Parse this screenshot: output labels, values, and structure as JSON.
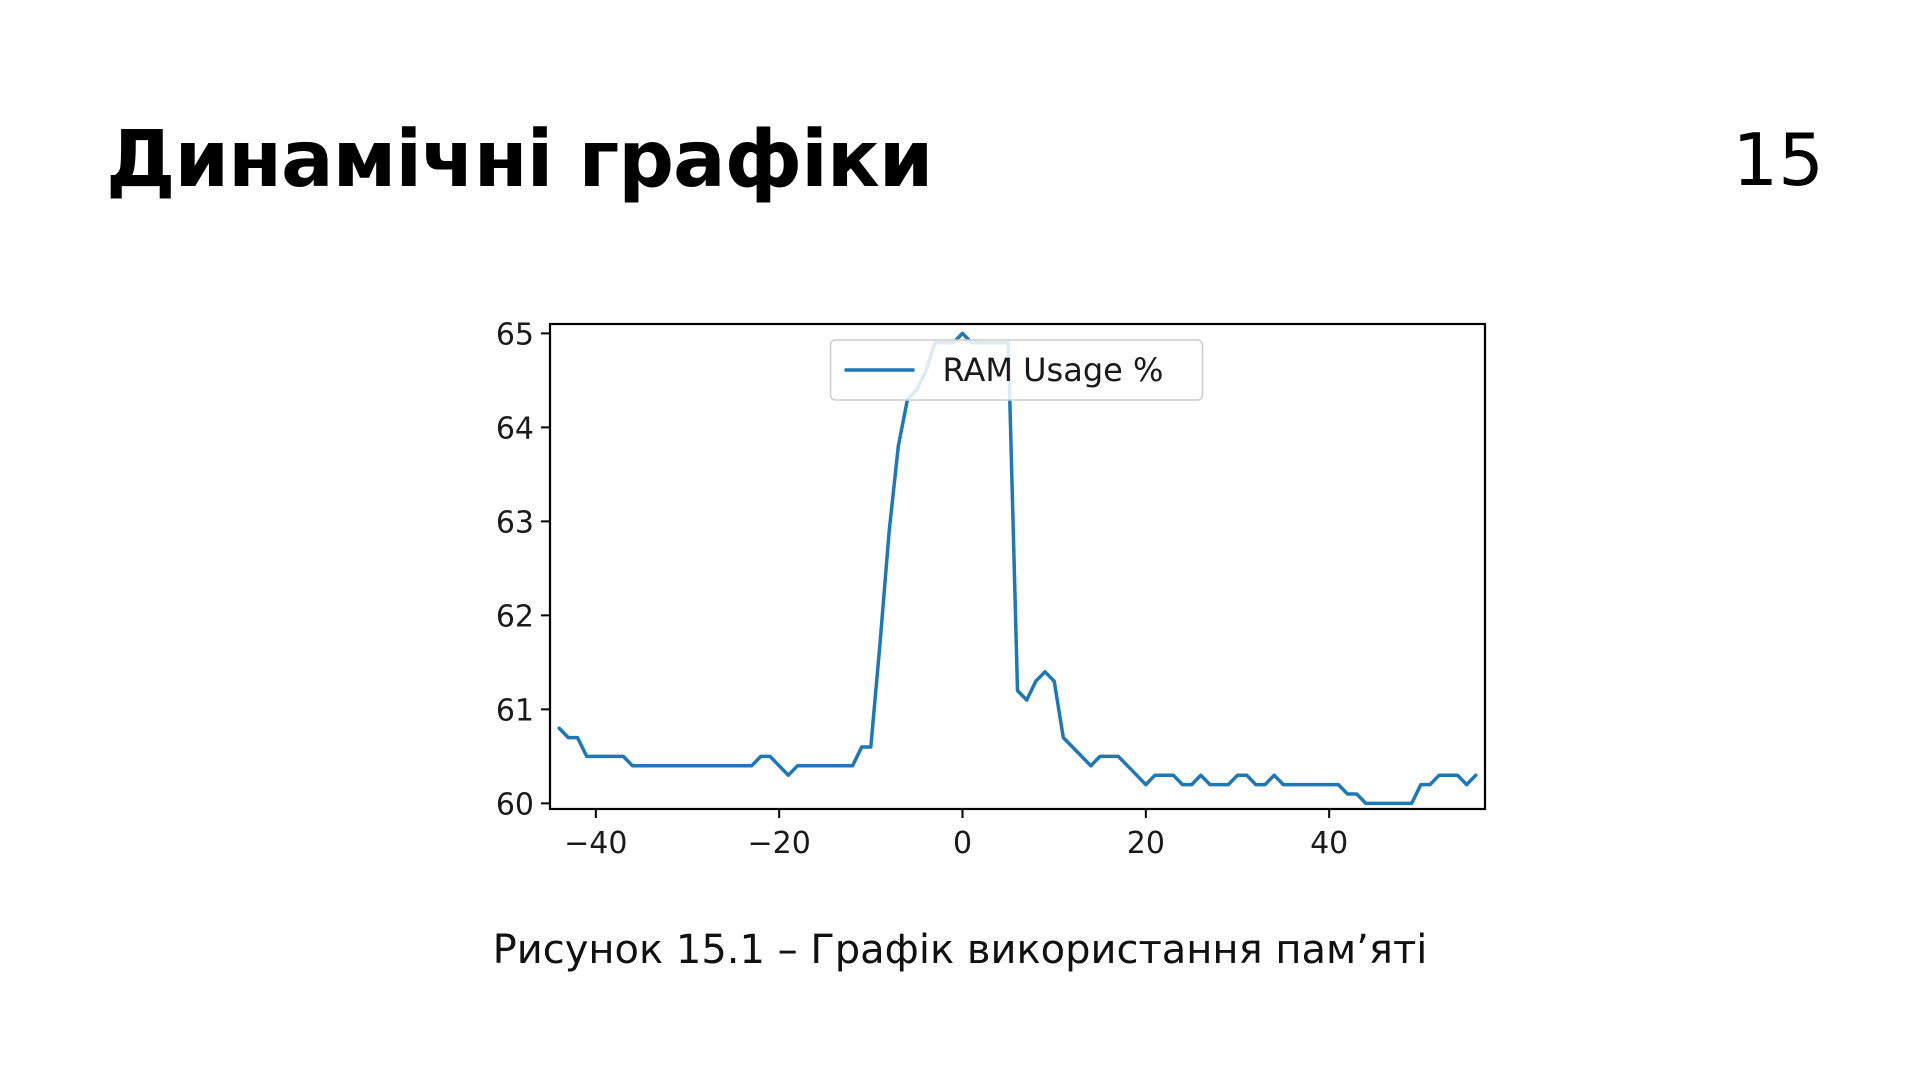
{
  "slide": {
    "title": "Динамічні графіки",
    "number": "15",
    "caption": "Рисунок 15.1 – Графік використання пам’яті"
  },
  "colors": {
    "line": "#1f77b4",
    "axis": "#000000",
    "background": "#ffffff"
  },
  "chart_data": {
    "type": "line",
    "title": "",
    "xlabel": "",
    "ylabel": "",
    "xlim": [
      -45,
      57
    ],
    "ylim": [
      60,
      65
    ],
    "xticks": [
      {
        "value": -40,
        "label": "−40"
      },
      {
        "value": -20,
        "label": "−20"
      },
      {
        "value": 0,
        "label": "0"
      },
      {
        "value": 20,
        "label": "20"
      },
      {
        "value": 40,
        "label": "40"
      }
    ],
    "yticks": [
      {
        "value": 60,
        "label": "60"
      },
      {
        "value": 61,
        "label": "61"
      },
      {
        "value": 62,
        "label": "62"
      },
      {
        "value": 63,
        "label": "63"
      },
      {
        "value": 64,
        "label": "64"
      },
      {
        "value": 65,
        "label": "65"
      }
    ],
    "grid": false,
    "legend": {
      "position": "upper center",
      "entries": [
        "RAM Usage %"
      ]
    },
    "series": [
      {
        "name": "RAM Usage %",
        "x": [
          -44,
          -43,
          -42,
          -41,
          -40,
          -39,
          -38,
          -37,
          -36,
          -35,
          -34,
          -33,
          -32,
          -31,
          -30,
          -29,
          -28,
          -27,
          -26,
          -25,
          -24,
          -23,
          -22,
          -21,
          -20,
          -19,
          -18,
          -17,
          -16,
          -15,
          -14,
          -13,
          -12,
          -11,
          -10,
          -9,
          -8,
          -7,
          -6,
          -5,
          -4,
          -3,
          -2,
          -1,
          0,
          1,
          2,
          3,
          4,
          5,
          6,
          7,
          8,
          9,
          10,
          11,
          12,
          13,
          14,
          15,
          16,
          17,
          18,
          19,
          20,
          21,
          22,
          23,
          24,
          25,
          26,
          27,
          28,
          29,
          30,
          31,
          32,
          33,
          34,
          35,
          36,
          37,
          38,
          39,
          40,
          41,
          42,
          43,
          44,
          45,
          46,
          47,
          48,
          49,
          50,
          51,
          52,
          53,
          54,
          55,
          56
        ],
        "y": [
          60.8,
          60.7,
          60.7,
          60.5,
          60.5,
          60.5,
          60.5,
          60.5,
          60.4,
          60.4,
          60.4,
          60.4,
          60.4,
          60.4,
          60.4,
          60.4,
          60.4,
          60.4,
          60.4,
          60.4,
          60.4,
          60.4,
          60.5,
          60.5,
          60.4,
          60.3,
          60.4,
          60.4,
          60.4,
          60.4,
          60.4,
          60.4,
          60.4,
          60.6,
          60.6,
          61.7,
          62.9,
          63.8,
          64.3,
          64.4,
          64.6,
          64.9,
          64.9,
          64.9,
          65.0,
          64.9,
          64.9,
          64.9,
          64.9,
          64.9,
          61.2,
          61.1,
          61.3,
          61.4,
          61.3,
          60.7,
          60.6,
          60.5,
          60.4,
          60.5,
          60.5,
          60.5,
          60.4,
          60.3,
          60.2,
          60.3,
          60.3,
          60.3,
          60.2,
          60.2,
          60.3,
          60.2,
          60.2,
          60.2,
          60.3,
          60.3,
          60.2,
          60.2,
          60.3,
          60.2,
          60.2,
          60.2,
          60.2,
          60.2,
          60.2,
          60.2,
          60.1,
          60.1,
          60.0,
          60.0,
          60.0,
          60.0,
          60.0,
          60.0,
          60.2,
          60.2,
          60.3,
          60.3,
          60.3,
          60.2,
          60.3
        ]
      }
    ]
  }
}
